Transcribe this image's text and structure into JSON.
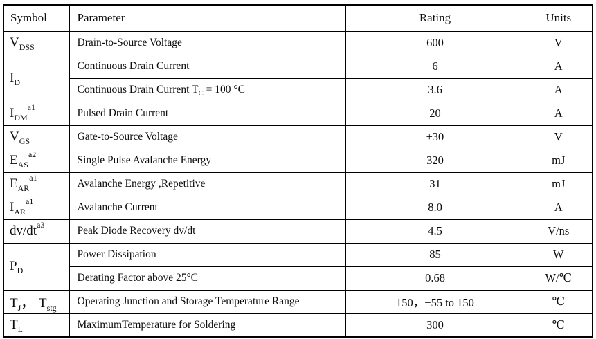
{
  "table": {
    "headers": {
      "symbol": "Symbol",
      "parameter": "Parameter",
      "rating": "Rating",
      "units": "Units"
    },
    "rows": [
      {
        "symbol": {
          "base": "V",
          "sub": "DSS",
          "sup": "",
          "sep": "",
          "base2": "",
          "sub2": ""
        },
        "parameter": {
          "pre": "Drain-to-Source Voltage",
          "sub": "",
          "post": ""
        },
        "rating": "600",
        "units": "V"
      },
      {
        "symbol": {
          "base": "I",
          "sub": "D",
          "sup": "",
          "sep": "",
          "base2": "",
          "sub2": ""
        },
        "parameter": {
          "pre": "Continuous Drain Current",
          "sub": "",
          "post": ""
        },
        "rating": "6",
        "units": "A"
      },
      {
        "symbol": null,
        "parameter": {
          "pre": "Continuous Drain Current T",
          "sub": "C",
          "post": " = 100 °C"
        },
        "rating": "3.6",
        "units": "A"
      },
      {
        "symbol": {
          "base": "I",
          "sub": "DM",
          "sup": "a1",
          "sep": "",
          "base2": "",
          "sub2": ""
        },
        "parameter": {
          "pre": "Pulsed Drain Current",
          "sub": "",
          "post": ""
        },
        "rating": "20",
        "units": "A"
      },
      {
        "symbol": {
          "base": "V",
          "sub": "GS",
          "sup": "",
          "sep": "",
          "base2": "",
          "sub2": ""
        },
        "parameter": {
          "pre": "Gate-to-Source Voltage",
          "sub": "",
          "post": ""
        },
        "rating": "±30",
        "units": "V"
      },
      {
        "symbol": {
          "base": "E",
          "sub": "AS",
          "sup": "a2",
          "sep": "",
          "base2": "",
          "sub2": ""
        },
        "parameter": {
          "pre": "Single Pulse Avalanche Energy",
          "sub": "",
          "post": ""
        },
        "rating": "320",
        "units": "mJ"
      },
      {
        "symbol": {
          "base": "E",
          "sub": "AR",
          "sup": "a1",
          "sep": "",
          "base2": "",
          "sub2": ""
        },
        "parameter": {
          "pre": "Avalanche Energy ,Repetitive",
          "sub": "",
          "post": ""
        },
        "rating": "31",
        "units": "mJ"
      },
      {
        "symbol": {
          "base": "I",
          "sub": "AR",
          "sup": "a1",
          "sep": "",
          "base2": "",
          "sub2": ""
        },
        "parameter": {
          "pre": "Avalanche Current",
          "sub": "",
          "post": ""
        },
        "rating": "8.0",
        "units": "A"
      },
      {
        "symbol": {
          "base": "dv/dt",
          "sub": "",
          "sup": "a3",
          "sep": "",
          "base2": "",
          "sub2": ""
        },
        "parameter": {
          "pre": "Peak Diode Recovery dv/dt",
          "sub": "",
          "post": ""
        },
        "rating": "4.5",
        "units": "V/ns"
      },
      {
        "symbol": {
          "base": "P",
          "sub": "D",
          "sup": "",
          "sep": "",
          "base2": "",
          "sub2": ""
        },
        "parameter": {
          "pre": "Power Dissipation",
          "sub": "",
          "post": ""
        },
        "rating": "85",
        "units": "W"
      },
      {
        "symbol": null,
        "parameter": {
          "pre": "Derating Factor above 25°C",
          "sub": "",
          "post": ""
        },
        "rating": "0.68",
        "units": "W/℃"
      },
      {
        "symbol": {
          "base": "T",
          "sub": "J",
          "sup": "",
          "sep": "，  ",
          "base2": "T",
          "sub2": "stg"
        },
        "parameter": {
          "pre": "Operating Junction and Storage Temperature Range",
          "sub": "",
          "post": ""
        },
        "rating": "150，−55 to 150",
        "units": "℃"
      },
      {
        "symbol": {
          "base": "T",
          "sub": "L",
          "sup": "",
          "sep": "",
          "base2": "",
          "sub2": ""
        },
        "parameter": {
          "pre": "MaximumTemperature for Soldering",
          "sub": "",
          "post": ""
        },
        "rating": "300",
        "units": "℃"
      }
    ]
  }
}
